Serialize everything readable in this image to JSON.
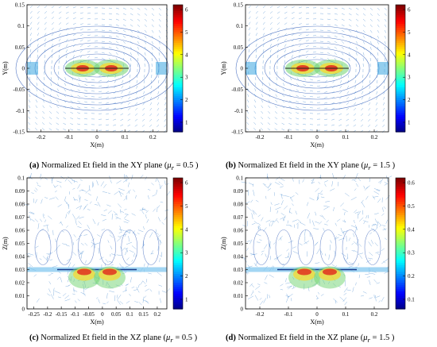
{
  "figure": {
    "panels": [
      {
        "id": "a",
        "caption_label": "(a)",
        "caption_text": "Normalized Et field in the XY plane (",
        "mu_symbol": "μ",
        "mu_sub": "r",
        "mu_value": " = 0.5 )",
        "xlabel": "X(m)",
        "ylabel": "Y(m)",
        "xticks": [
          "-0.2",
          "-0.1",
          "0",
          "0.1",
          "0.2"
        ],
        "yticks": [
          "0.15",
          "0.1",
          "0.05",
          "0",
          "-0.05",
          "-0.1",
          "-0.15"
        ],
        "cbar_ticks": [
          "6",
          "5",
          "4",
          "3",
          "2",
          "1"
        ],
        "plane": "xy"
      },
      {
        "id": "b",
        "caption_label": "(b)",
        "caption_text": "Normalized Et field in the XY plane (",
        "mu_symbol": "μ",
        "mu_sub": "r",
        "mu_value": " = 1.5 )",
        "xlabel": "X(m)",
        "ylabel": "Y(m)",
        "xticks": [
          "-0.2",
          "-0.1",
          "0",
          "0.1",
          "0.2"
        ],
        "yticks": [
          "0.15",
          "0.1",
          "0.05",
          "0",
          "-0.05",
          "-0.1",
          "-0.15"
        ],
        "cbar_ticks": [
          "6",
          "5",
          "4",
          "3",
          "2",
          "1"
        ],
        "plane": "xy"
      },
      {
        "id": "c",
        "caption_label": "(c)",
        "caption_text": "Normalized Et field in the XZ plane (",
        "mu_symbol": "μ",
        "mu_sub": "r",
        "mu_value": " = 0.5 )",
        "xlabel": "X(m)",
        "ylabel": "Z(m)",
        "xticks": [
          "-0.25",
          "-0.2",
          "-0.15",
          "-0.1",
          "-0.05",
          "0",
          "0.05",
          "0.1",
          "0.15",
          "0.2"
        ],
        "yticks": [
          "0.1",
          "0.09",
          "0.08",
          "0.07",
          "0.06",
          "0.05",
          "0.04",
          "0.03",
          "0.02",
          "0.01",
          "0"
        ],
        "cbar_ticks": [
          "6",
          "5",
          "4",
          "3",
          "2",
          "1"
        ],
        "plane": "xz"
      },
      {
        "id": "d",
        "caption_label": "(d)",
        "caption_text": "Normalized Et field in the XZ plane (",
        "mu_symbol": "μ",
        "mu_sub": "r",
        "mu_value": " = 1.5 )",
        "xlabel": "X(m)",
        "ylabel": "Z(m)",
        "xticks": [
          "-0.2",
          "-0.1",
          "0",
          "0.1",
          "0.2"
        ],
        "yticks": [
          "0.1",
          "0.09",
          "0.08",
          "0.07",
          "0.06",
          "0.05",
          "0.04",
          "0.03",
          "0.02",
          "0.01",
          "0"
        ],
        "cbar_ticks": [
          "0.6",
          "0.5",
          "0.4",
          "0.3",
          "0.2",
          "0.1"
        ],
        "plane": "xz"
      }
    ]
  },
  "colors": {
    "vector": "#2a78c8",
    "contour": "#1f4fb3",
    "axis": "#000000"
  }
}
